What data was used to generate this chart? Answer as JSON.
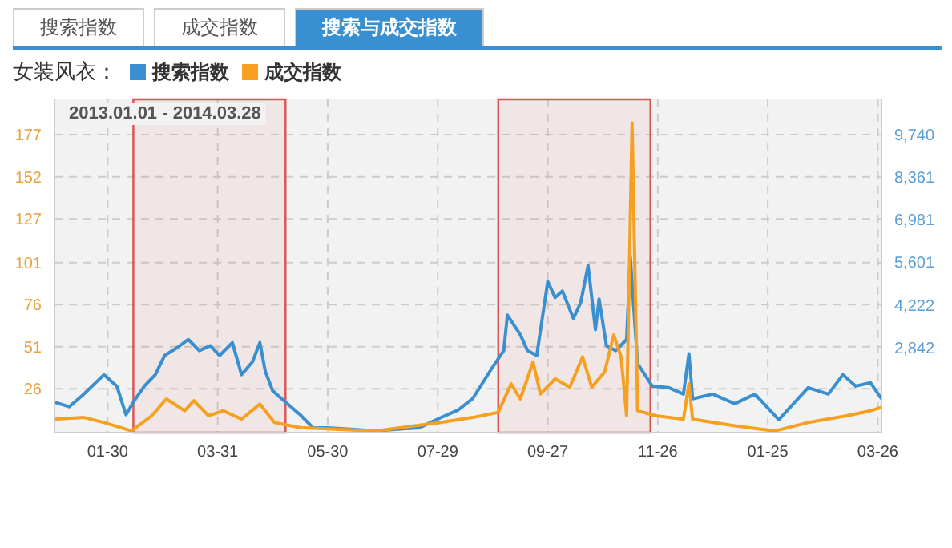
{
  "chart_data": {
    "type": "line",
    "subtitle": "2013.01.01 - 2014.03.28",
    "legend_title": "女装风衣：",
    "legend": "top left",
    "grid": true,
    "marker": "none",
    "line_style": "solid",
    "annotations": [
      "搜索指数",
      "成交指数",
      "搜索与成交指数"
    ],
    "xlim": [
      "2013-01-01",
      "2014-03-28"
    ],
    "xticks": [
      {
        "value": "2013-01-30",
        "label": "01-30"
      },
      {
        "value": "2013-03-31",
        "label": "03-31"
      },
      {
        "value": "2013-05-30",
        "label": "05-30"
      },
      {
        "value": "2013-07-29",
        "label": "07-29"
      },
      {
        "value": "2013-09-27",
        "label": "09-27"
      },
      {
        "value": "2013-11-26",
        "label": "11-26"
      },
      {
        "value": "2014-01-25",
        "label": "01-25"
      },
      {
        "value": "2014-03-26",
        "label": "03-26"
      }
    ],
    "ylim": [
      0,
      198
    ],
    "yticks": [
      26,
      51,
      76,
      101,
      127,
      152,
      177
    ],
    "y2lim": [
      82,
      10880
    ],
    "y2ticks": [
      {
        "value": 2842,
        "label": "2,842"
      },
      {
        "value": 4222,
        "label": "4,222"
      },
      {
        "value": 5601,
        "label": "5,601"
      },
      {
        "value": 6981,
        "label": "6,981"
      },
      {
        "value": 8361,
        "label": "8,361"
      },
      {
        "value": 9740,
        "label": "9,740"
      }
    ],
    "bands": [
      {
        "axis": "x",
        "from": "2013-02-13",
        "to": "2013-05-07",
        "color": "#d9534f"
      },
      {
        "axis": "x",
        "from": "2013-08-31",
        "to": "2013-11-22",
        "color": "#d9534f"
      }
    ],
    "series": [
      {
        "name": "搜索指数",
        "color": "#3a8fd0",
        "axis": "y2",
        "x": [
          "2013-01-01",
          "2013-01-09",
          "2013-01-17",
          "2013-01-28",
          "2013-02-04",
          "2013-02-09",
          "2013-02-13",
          "2013-02-19",
          "2013-02-25",
          "2013-03-02",
          "2013-03-09",
          "2013-03-15",
          "2013-03-21",
          "2013-03-27",
          "2013-04-01",
          "2013-04-08",
          "2013-04-13",
          "2013-04-19",
          "2013-04-23",
          "2013-04-26",
          "2013-04-30",
          "2013-05-07",
          "2013-05-15",
          "2013-05-22",
          "2013-05-30",
          "2013-06-25",
          "2013-07-19",
          "2013-07-30",
          "2013-08-09",
          "2013-08-17",
          "2013-08-27",
          "2013-09-03",
          "2013-09-05",
          "2013-09-12",
          "2013-09-16",
          "2013-09-21",
          "2013-09-27",
          "2013-10-01",
          "2013-10-05",
          "2013-10-11",
          "2013-10-15",
          "2013-10-19",
          "2013-10-23",
          "2013-10-25",
          "2013-10-29",
          "2013-11-03",
          "2013-11-09",
          "2013-11-11",
          "2013-11-15",
          "2013-11-23",
          "2013-12-02",
          "2013-12-10",
          "2013-12-13",
          "2013-12-15",
          "2013-12-26",
          "2014-01-07",
          "2014-01-18",
          "2014-01-31",
          "2014-02-16",
          "2014-02-27",
          "2014-03-07",
          "2014-03-14",
          "2014-03-22",
          "2014-03-28"
        ],
        "values": [
          1070,
          920,
          1330,
          1960,
          1590,
          660,
          1070,
          1590,
          1960,
          2580,
          2840,
          3100,
          2740,
          2900,
          2580,
          3000,
          1960,
          2380,
          3000,
          2060,
          1440,
          1070,
          660,
          240,
          240,
          140,
          240,
          550,
          810,
          1180,
          2120,
          2740,
          3890,
          3260,
          2740,
          2580,
          4980,
          4460,
          4670,
          3780,
          4300,
          5500,
          3420,
          4410,
          2900,
          2740,
          3100,
          5780,
          2320,
          1590,
          1540,
          1330,
          2640,
          1180,
          1330,
          1020,
          1330,
          500,
          1540,
          1330,
          1960,
          1590,
          1700,
          1180
        ]
      },
      {
        "name": "成交指数",
        "color": "#f5a020",
        "x": [
          "2013-01-01",
          "2013-01-17",
          "2013-01-28",
          "2013-02-12",
          "2013-02-23",
          "2013-03-03",
          "2013-03-13",
          "2013-03-18",
          "2013-03-26",
          "2013-04-03",
          "2013-04-13",
          "2013-04-23",
          "2013-05-01",
          "2013-05-15",
          "2013-06-25",
          "2013-07-30",
          "2013-08-17",
          "2013-08-31",
          "2013-09-07",
          "2013-09-12",
          "2013-09-19",
          "2013-09-23",
          "2013-10-01",
          "2013-10-09",
          "2013-10-16",
          "2013-10-21",
          "2013-10-28",
          "2013-11-02",
          "2013-11-06",
          "2013-11-09",
          "2013-11-12",
          "2013-11-15",
          "2013-11-25",
          "2013-12-10",
          "2013-12-13",
          "2013-12-15",
          "2014-01-07",
          "2014-01-29",
          "2014-02-16",
          "2014-03-09",
          "2014-03-22",
          "2014-03-28"
        ],
        "values": [
          8,
          9,
          6,
          1,
          10,
          20,
          13,
          19,
          10,
          13,
          8,
          17,
          6,
          3,
          1,
          6,
          9,
          12,
          29,
          20,
          42,
          23,
          32,
          27,
          45,
          27,
          36,
          58,
          45,
          10,
          184,
          13,
          10,
          8,
          29,
          8,
          4,
          1,
          6,
          10,
          13,
          15
        ]
      }
    ]
  }
}
